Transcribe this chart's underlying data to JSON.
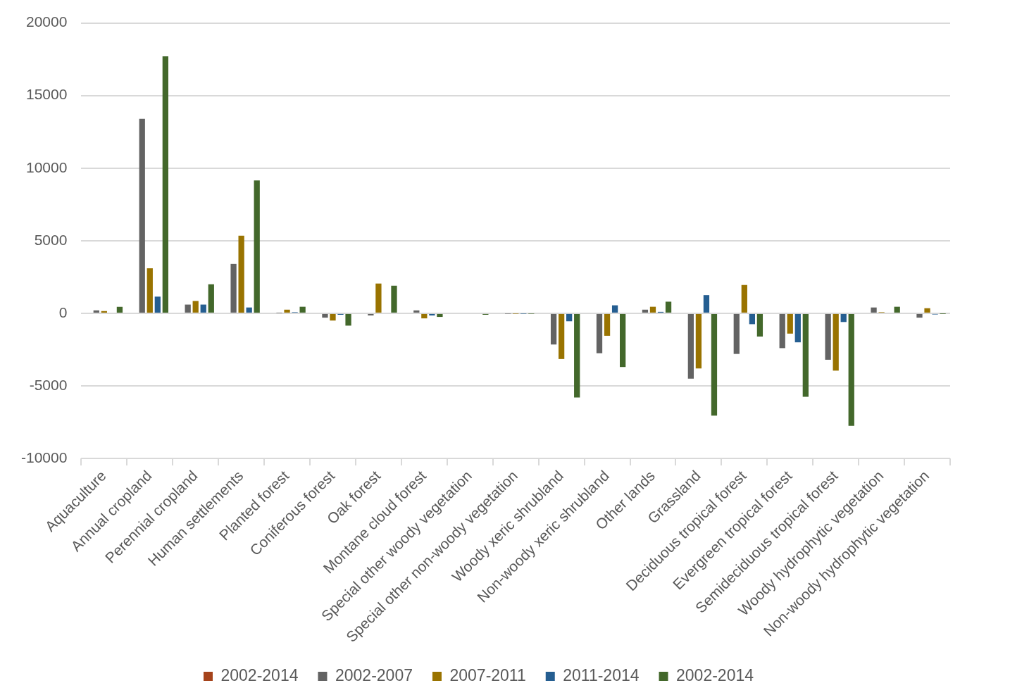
{
  "chart_data": {
    "type": "bar",
    "categories": [
      "Aquaculture",
      "Annual cropland",
      "Perennial cropland",
      "Human settlements",
      "Planted forest",
      "Coniferous forest",
      "Oak forest",
      "Montane cloud forest",
      "Special other woody vegetation",
      "Special other non-woody vegetation",
      "Woody xeric shrubland",
      "Non-woody xeric shrubland",
      "Other lands",
      "Grassland",
      "Deciduous tropical forest",
      "Evergreen tropical forest",
      "Semideciduous tropical forest",
      "Woody hydrophytic vegetation",
      "Non-woody hydrophytic vegetation"
    ],
    "series": [
      {
        "name": "2002-2014",
        "color": "#a5431b",
        "values": [
          0,
          0,
          0,
          0,
          0,
          0,
          0,
          0,
          0,
          0,
          0,
          0,
          0,
          0,
          0,
          0,
          0,
          0,
          0
        ]
      },
      {
        "name": "2002-2007",
        "color": "#636363",
        "values": [
          200,
          13400,
          600,
          3400,
          20,
          -300,
          -150,
          200,
          0,
          -20,
          -2150,
          -2750,
          250,
          -4500,
          -2800,
          -2400,
          -3200,
          400,
          -300
        ]
      },
      {
        "name": "2007-2011",
        "color": "#997300",
        "values": [
          150,
          3100,
          850,
          5350,
          250,
          -500,
          2050,
          -350,
          null,
          -20,
          -3150,
          -1550,
          450,
          -3800,
          1950,
          -1400,
          -3950,
          80,
          350
        ]
      },
      {
        "name": "2011-2014",
        "color": "#255e91",
        "values": [
          null,
          1150,
          600,
          400,
          80,
          -100,
          null,
          -150,
          0,
          -20,
          -550,
          550,
          100,
          1250,
          -750,
          -2000,
          -600,
          null,
          -80
        ]
      },
      {
        "name": "2002-2014",
        "color": "#43682b",
        "values": [
          450,
          17700,
          2000,
          9150,
          450,
          -850,
          1900,
          -250,
          -100,
          -20,
          -5800,
          -3700,
          800,
          -7050,
          -1600,
          -5750,
          -7750,
          450,
          -10
        ]
      }
    ],
    "ylim": [
      -10000,
      20000
    ],
    "yticks": [
      -10000,
      -5000,
      0,
      5000,
      10000,
      15000,
      20000
    ],
    "grid": "y",
    "legend": "bottom"
  }
}
